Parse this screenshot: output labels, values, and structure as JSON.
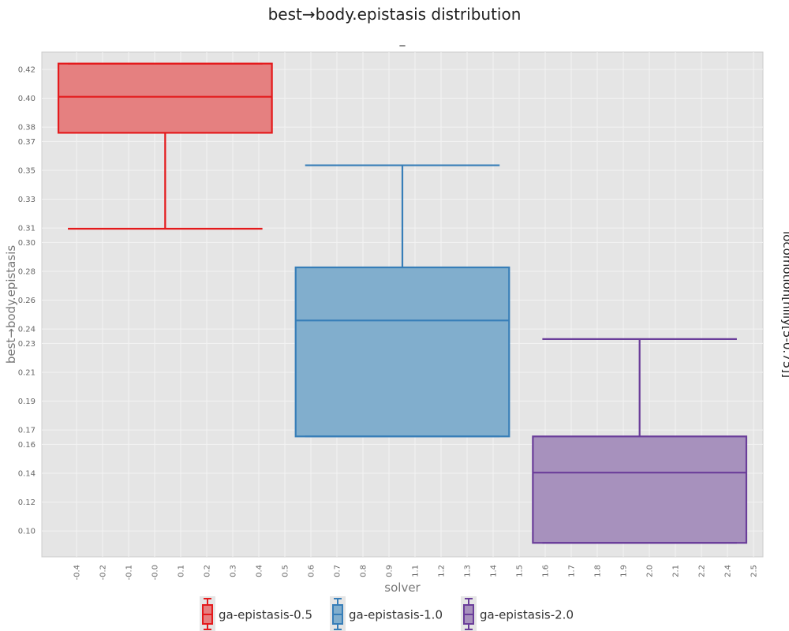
{
  "chart_data": {
    "type": "box",
    "title": "best→body.epistasis distribution",
    "subtitle": "_",
    "xlabel": "solver",
    "ylabel": "best→body.epistasis",
    "facet_label": "locomotion[hilly[5-0.75]]",
    "x_tick_labels": [
      "-0.4",
      "-0.2",
      "-0.1",
      "-0.0",
      "0.1",
      "0.2",
      "0.3",
      "0.4",
      "0.5",
      "0.6",
      "0.7",
      "0.8",
      "0.9",
      "1.1",
      "1.2",
      "1.3",
      "1.4",
      "1.5",
      "1.6",
      "1.7",
      "1.8",
      "1.9",
      "2.0",
      "2.1",
      "2.2",
      "2.4",
      "2.5"
    ],
    "y_ticks": [
      0.1,
      0.12,
      0.14,
      0.16,
      0.17,
      0.19,
      0.21,
      0.23,
      0.24,
      0.26,
      0.28,
      0.3,
      0.31,
      0.33,
      0.35,
      0.37,
      0.38,
      0.4,
      0.42
    ],
    "y_tick_labels": [
      "0.10",
      "0.12",
      "0.14",
      "0.16",
      "0.17",
      "0.19",
      "0.21",
      "0.23",
      "0.24",
      "0.26",
      "0.28",
      "0.30",
      "0.31",
      "0.33",
      "0.35",
      "0.37",
      "0.38",
      "0.40",
      "0.42"
    ],
    "ylim": [
      0.082,
      0.432
    ],
    "grid": true,
    "legend_position": "bottom",
    "series": [
      {
        "name": "ga-epistasis-0.5",
        "color": "#e41a1c",
        "fill": "#e58080",
        "x": 0.0,
        "q1": 0.376,
        "median": 0.401,
        "q3": 0.424,
        "whisker_low": 0.3095,
        "whisker_high": 0.424
      },
      {
        "name": "ga-epistasis-1.0",
        "color": "#377eb8",
        "fill": "#81aecd",
        "x": 1.0,
        "q1": 0.1655,
        "median": 0.2459,
        "q3": 0.2827,
        "whisker_low": 0.1655,
        "whisker_high": 0.3535
      },
      {
        "name": "ga-epistasis-2.0",
        "color": "#6a3d9a",
        "fill": "#a791bd",
        "x": 2.0,
        "q1": 0.0917,
        "median": 0.1404,
        "q3": 0.1655,
        "whisker_low": 0.0917,
        "whisker_high": 0.233
      }
    ]
  }
}
